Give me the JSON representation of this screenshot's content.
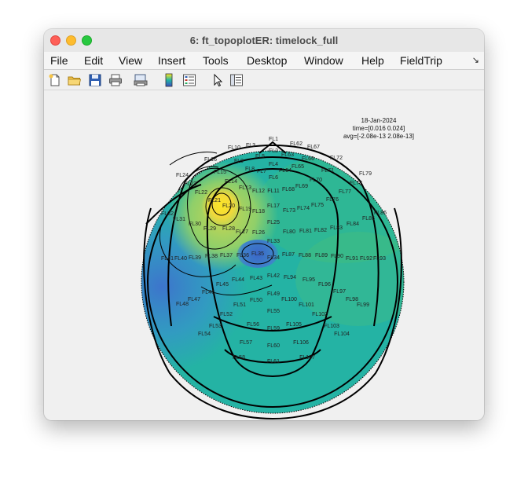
{
  "window": {
    "title": "6: ft_topoplotER: timelock_full"
  },
  "menubar": {
    "items": [
      "File",
      "Edit",
      "View",
      "Insert",
      "Tools",
      "Desktop",
      "Window",
      "Help",
      "FieldTrip"
    ],
    "overflow_arrow": "↘"
  },
  "toolbar": {
    "icons": [
      "new-figure-icon",
      "open-file-icon",
      "save-icon",
      "print-icon",
      "print-preview-icon",
      "colorbar-icon",
      "legend-icon",
      "edit-plot-cursor-icon",
      "property-inspector-icon"
    ]
  },
  "plot": {
    "info_lines": [
      "18-Jan-2024",
      "time=[0.016 0.024]",
      "avg=[-2.08e-13 2.08e-13]"
    ],
    "colors": {
      "background": "#24b3a4",
      "low": "#3e6ac4",
      "high": "#fde725",
      "outline": "#000000"
    },
    "channels": [
      "FL1",
      "FL2",
      "FL3",
      "FL4",
      "FL5",
      "FL6",
      "FL7",
      "FL8",
      "FL9",
      "FL10",
      "FL11",
      "FL12",
      "FL13",
      "FL14",
      "FL15",
      "FL16",
      "FL17",
      "FL18",
      "FL19",
      "FL20",
      "FL21",
      "FL22",
      "FL23",
      "FL24",
      "FL25",
      "FL26",
      "FL27",
      "FL28",
      "FL29",
      "FL30",
      "FL31",
      "FL32",
      "FL33",
      "FL34",
      "FL35",
      "FL36",
      "FL37",
      "FL38",
      "FL39",
      "FL40",
      "FL41",
      "FL42",
      "FL43",
      "FL44",
      "FL45",
      "FL46",
      "FL47",
      "FL48",
      "FL49",
      "FL50",
      "FL51",
      "FL52",
      "FL53",
      "FL54",
      "FL55",
      "FL56",
      "FL57",
      "FL58",
      "FL59",
      "FL60",
      "FL61",
      "FL62",
      "FL63",
      "FL64",
      "FL65",
      "FL66",
      "FL67",
      "FL68",
      "FL69",
      "FL70",
      "FL71",
      "FL72",
      "FL73",
      "FL74",
      "FL75",
      "FL76",
      "FL77",
      "FL78",
      "FL79",
      "FL80",
      "FL81",
      "FL82",
      "FL83",
      "FL84",
      "FL85",
      "FL86",
      "FL87",
      "FL88",
      "FL89",
      "FL90",
      "FL91",
      "FL92",
      "FL93",
      "FL94",
      "FL95",
      "FL96",
      "FL97",
      "FL98",
      "FL99",
      "FL100",
      "FL101",
      "FL102",
      "FL103",
      "FL104",
      "FL105",
      "FL106",
      "FL107"
    ]
  }
}
